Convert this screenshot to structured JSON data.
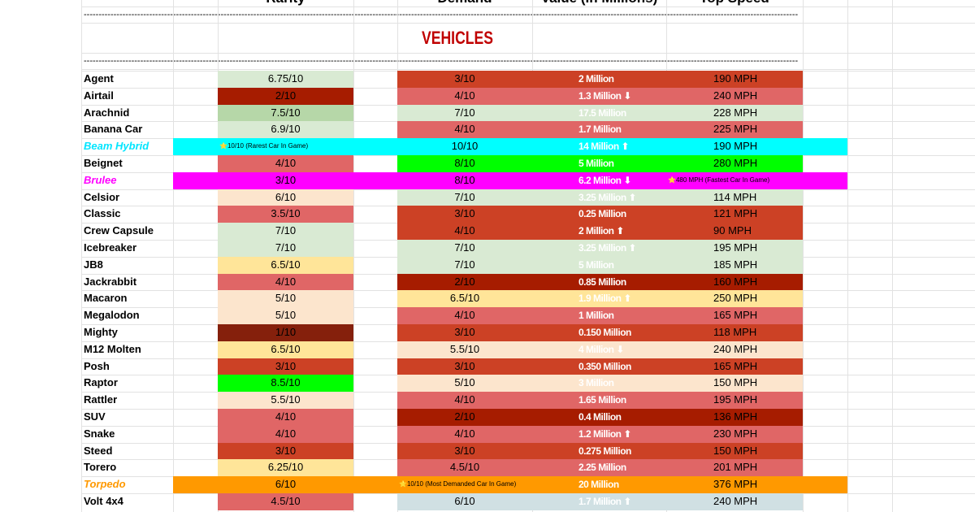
{
  "header": {
    "columns": [
      "Rarity",
      "Demand",
      "Value (In Millions)",
      "Top Speed"
    ]
  },
  "divider": "------------------------------------------------------------------------------------------------------------------------------------------------------------------------------------------------------------------------------------------------",
  "title": "VEHICLES",
  "rows": [
    {
      "name": "Agent",
      "rarity": "6.75/10",
      "rarity_color": "#d9ead3",
      "demand": "3/10",
      "demand_color": "#cc4125",
      "value": "2 Million",
      "speed": "190 MPH"
    },
    {
      "name": "Airtail",
      "rarity": "2/10",
      "rarity_color": "#a61c00",
      "demand": "4/10",
      "demand_color": "#e06666",
      "value": "1.3 Million ⬇",
      "speed": "240 MPH"
    },
    {
      "name": "Arachnid",
      "rarity": "7.5/10",
      "rarity_color": "#b6d7a8",
      "demand": "7/10",
      "demand_color": "#d9ead3",
      "value": "17.5 Million",
      "speed": "228 MPH"
    },
    {
      "name": "Banana Car",
      "rarity": "6.9/10",
      "rarity_color": "#d9ead3",
      "demand": "4/10",
      "demand_color": "#e06666",
      "value": "1.7 Million",
      "speed": "225 MPH"
    },
    {
      "name": "Beam Hybrid",
      "rarity": "⭐10/10 (Rarest Car In Game)",
      "highlight": "#00ffff",
      "name_color": "#00e5ff",
      "demand": "10/10",
      "value": "14 Million ⬆",
      "speed": "190 MPH"
    },
    {
      "name": "Beignet",
      "rarity": "4/10",
      "rarity_color": "#e06666",
      "demand": "8/10",
      "demand_color": "#00ff00",
      "value": "5 Million",
      "speed": "280 MPH"
    },
    {
      "name": "Brulee",
      "rarity": "3/10",
      "highlight": "#ff00ff",
      "name_color": "#ff00ff",
      "demand": "8/10",
      "value": "6.2 Million ⬇",
      "speed": "⭐480 MPH (Fastest Car In Game)"
    },
    {
      "name": "Celsior",
      "rarity": "6/10",
      "rarity_color": "#fce5cd",
      "demand": "7/10",
      "demand_color": "#d9ead3",
      "value": "3.25 Million ⬆",
      "speed": "114 MPH"
    },
    {
      "name": "Classic",
      "rarity": "3.5/10",
      "rarity_color": "#e06666",
      "demand": "3/10",
      "demand_color": "#cc4125",
      "value": "0.25 Million",
      "speed": "121 MPH"
    },
    {
      "name": "Crew Capsule",
      "rarity": "7/10",
      "rarity_color": "#d9ead3",
      "demand": "4/10",
      "demand_color": "#cc4125",
      "value": "2 Million ⬆",
      "speed": "90 MPH"
    },
    {
      "name": "Icebreaker",
      "rarity": "7/10",
      "rarity_color": "#d9ead3",
      "demand": "7/10",
      "demand_color": "#d9ead3",
      "value": "3.25 Million ⬆",
      "speed": "195 MPH"
    },
    {
      "name": "JB8",
      "rarity": "6.5/10",
      "rarity_color": "#ffe599",
      "demand": "7/10",
      "demand_color": "#d9ead3",
      "value": "5 Million",
      "speed": "185 MPH"
    },
    {
      "name": "Jackrabbit",
      "rarity": "4/10",
      "rarity_color": "#e06666",
      "demand": "2/10",
      "demand_color": "#a61c00",
      "value": "0.85 Million",
      "speed": "160 MPH"
    },
    {
      "name": "Macaron",
      "rarity": "5/10",
      "rarity_color": "#fce5cd",
      "demand": "6.5/10",
      "demand_color": "#ffe599",
      "value": "1.9 Million ⬆",
      "speed": "250 MPH"
    },
    {
      "name": "Megalodon",
      "rarity": "5/10",
      "rarity_color": "#fce5cd",
      "demand": "4/10",
      "demand_color": "#e06666",
      "value": "1 Million",
      "speed": "165 MPH"
    },
    {
      "name": "Mighty",
      "rarity": "1/10",
      "rarity_color": "#85200c",
      "demand": "3/10",
      "demand_color": "#cc4125",
      "value": "0.150 Million",
      "speed": "118 MPH"
    },
    {
      "name": "M12 Molten",
      "rarity": "6.5/10",
      "rarity_color": "#ffe599",
      "demand": "5.5/10",
      "demand_color": "#fce5cd",
      "value": "4 Million ⬇",
      "speed": "240 MPH"
    },
    {
      "name": "Posh",
      "rarity": "3/10",
      "rarity_color": "#cc4125",
      "demand": "3/10",
      "demand_color": "#cc4125",
      "value": "0.350 Million",
      "speed": "165 MPH"
    },
    {
      "name": "Raptor",
      "rarity": "8.5/10",
      "rarity_color": "#00ff00",
      "demand": "5/10",
      "demand_color": "#fce5cd",
      "value": "3 Million",
      "speed": "150 MPH"
    },
    {
      "name": "Rattler",
      "rarity": "5.5/10",
      "rarity_color": "#fce5cd",
      "demand": "4/10",
      "demand_color": "#e06666",
      "value": "1.65 Million",
      "speed": "195 MPH"
    },
    {
      "name": "SUV",
      "rarity": "4/10",
      "rarity_color": "#e06666",
      "demand": "2/10",
      "demand_color": "#a61c00",
      "value": "0.4 Million",
      "speed": "136 MPH"
    },
    {
      "name": "Snake",
      "rarity": "4/10",
      "rarity_color": "#e06666",
      "demand": "4/10",
      "demand_color": "#e06666",
      "value": "1.2 Million ⬆",
      "speed": "230 MPH"
    },
    {
      "name": "Steed",
      "rarity": "3/10",
      "rarity_color": "#cc4125",
      "demand": "3/10",
      "demand_color": "#cc4125",
      "value": "0.275 Million",
      "speed": "150 MPH"
    },
    {
      "name": "Torero",
      "rarity": "6.25/10",
      "rarity_color": "#ffe599",
      "demand": "4.5/10",
      "demand_color": "#e06666",
      "value": "2.25 Million",
      "speed": "201 MPH"
    },
    {
      "name": "Torpedo",
      "rarity": "6/10",
      "highlight": "#ff9900",
      "name_color": "#ff9900",
      "demand": "⭐10/10 (Most Demanded Car In Game)",
      "value": "20 Million",
      "speed": "376 MPH"
    },
    {
      "name": "Volt 4x4",
      "rarity": "4.5/10",
      "rarity_color": "#e06666",
      "demand": "6/10",
      "demand_color": "#d0e0e3",
      "value": "1.7 Million ⬆",
      "speed": "240 MPH"
    }
  ]
}
